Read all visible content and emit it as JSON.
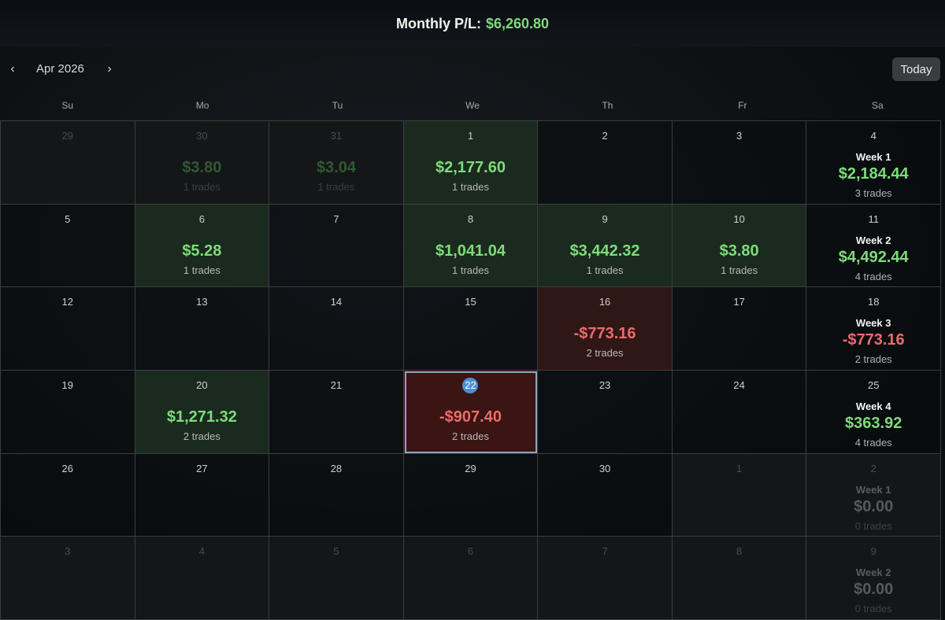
{
  "header": {
    "label": "Monthly P/L:",
    "value": "$6,260.80"
  },
  "toolbar": {
    "month": "Apr 2026",
    "prev_icon": "‹",
    "next_icon": "›",
    "today_label": "Today"
  },
  "weekdays": [
    "Su",
    "Mo",
    "Tu",
    "We",
    "Th",
    "Fr",
    "Sa"
  ],
  "colors": {
    "positive": "#7ddc7a",
    "negative": "#ec6b6b",
    "today_badge": "#4a8fd6"
  },
  "weeks": [
    {
      "days": [
        {
          "day": "29",
          "current": false
        },
        {
          "day": "30",
          "current": false,
          "pl": "$3.80",
          "trades": "1 trades",
          "sign": "pos"
        },
        {
          "day": "31",
          "current": false,
          "pl": "$3.04",
          "trades": "1 trades",
          "sign": "pos"
        },
        {
          "day": "1",
          "current": true,
          "pl": "$2,177.60",
          "trades": "1 trades",
          "sign": "pos"
        },
        {
          "day": "2",
          "current": true
        },
        {
          "day": "3",
          "current": true
        }
      ],
      "sat": {
        "day": "4",
        "current": true
      },
      "summary": {
        "label": "Week 1",
        "pl": "$2,184.44",
        "trades": "3 trades",
        "sign": "pos"
      }
    },
    {
      "days": [
        {
          "day": "5",
          "current": true
        },
        {
          "day": "6",
          "current": true,
          "pl": "$5.28",
          "trades": "1 trades",
          "sign": "pos"
        },
        {
          "day": "7",
          "current": true
        },
        {
          "day": "8",
          "current": true,
          "pl": "$1,041.04",
          "trades": "1 trades",
          "sign": "pos"
        },
        {
          "day": "9",
          "current": true,
          "pl": "$3,442.32",
          "trades": "1 trades",
          "sign": "pos"
        },
        {
          "day": "10",
          "current": true,
          "pl": "$3.80",
          "trades": "1 trades",
          "sign": "pos"
        }
      ],
      "sat": {
        "day": "11",
        "current": true
      },
      "summary": {
        "label": "Week 2",
        "pl": "$4,492.44",
        "trades": "4 trades",
        "sign": "pos"
      }
    },
    {
      "days": [
        {
          "day": "12",
          "current": true
        },
        {
          "day": "13",
          "current": true
        },
        {
          "day": "14",
          "current": true
        },
        {
          "day": "15",
          "current": true
        },
        {
          "day": "16",
          "current": true,
          "pl": "-$773.16",
          "trades": "2 trades",
          "sign": "neg"
        },
        {
          "day": "17",
          "current": true
        }
      ],
      "sat": {
        "day": "18",
        "current": true
      },
      "summary": {
        "label": "Week 3",
        "pl": "-$773.16",
        "trades": "2 trades",
        "sign": "neg"
      }
    },
    {
      "days": [
        {
          "day": "19",
          "current": true
        },
        {
          "day": "20",
          "current": true,
          "pl": "$1,271.32",
          "trades": "2 trades",
          "sign": "pos"
        },
        {
          "day": "21",
          "current": true
        },
        {
          "day": "22",
          "current": true,
          "today": true,
          "pl": "-$907.40",
          "trades": "2 trades",
          "sign": "neg"
        },
        {
          "day": "23",
          "current": true
        },
        {
          "day": "24",
          "current": true
        }
      ],
      "sat": {
        "day": "25",
        "current": true
      },
      "summary": {
        "label": "Week 4",
        "pl": "$363.92",
        "trades": "4 trades",
        "sign": "pos"
      }
    },
    {
      "days": [
        {
          "day": "26",
          "current": true
        },
        {
          "day": "27",
          "current": true
        },
        {
          "day": "28",
          "current": true
        },
        {
          "day": "29",
          "current": true
        },
        {
          "day": "30",
          "current": true
        },
        {
          "day": "1",
          "current": false
        }
      ],
      "sat": {
        "day": "2",
        "current": false
      },
      "summary": {
        "label": "Week 1",
        "pl": "$0.00",
        "trades": "0 trades",
        "sign": "zero"
      }
    },
    {
      "days": [
        {
          "day": "3",
          "current": false
        },
        {
          "day": "4",
          "current": false
        },
        {
          "day": "5",
          "current": false
        },
        {
          "day": "6",
          "current": false
        },
        {
          "day": "7",
          "current": false
        },
        {
          "day": "8",
          "current": false
        }
      ],
      "sat": {
        "day": "9",
        "current": false
      },
      "summary": {
        "label": "Week 2",
        "pl": "$0.00",
        "trades": "0 trades",
        "sign": "zero"
      }
    }
  ]
}
